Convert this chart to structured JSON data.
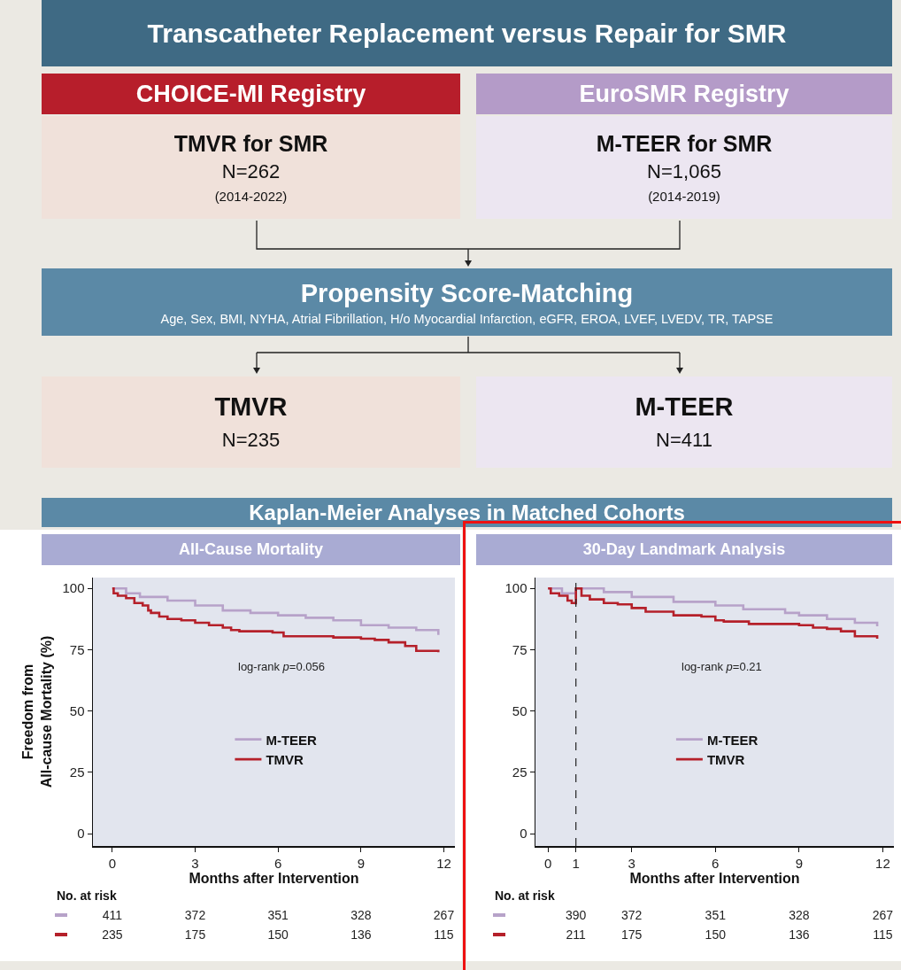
{
  "chart_data": [
    {
      "type": "other",
      "title": "Transcatheter Replacement versus Repair for SMR",
      "annotations": [
        "CHOICE-MI Registry",
        "EuroSMR Registry",
        "TMVR for SMR",
        "N=262",
        "(2014-2022)",
        "M-TEER for SMR",
        "N=1,065",
        "(2014-2019)",
        "Propensity Score-Matching",
        "Age, Sex, BMI, NYHA, Atrial Fibrillation, H/o Myocardial Infarction, eGFR, EROA, LVEF, LVEDV, TR, TAPSE",
        "TMVR",
        "N=235",
        "M-TEER",
        "N=411",
        "Kaplan-Meier Analyses in Matched Cohorts"
      ]
    },
    {
      "type": "step",
      "title": "All-Cause Mortality",
      "xlabel": "Months after Intervention",
      "ylabel": "Freedom from\nAll-cause Mortality (%)",
      "xlim": [
        -0.7,
        12.4
      ],
      "xticks": [
        0,
        3,
        6,
        9,
        12
      ],
      "ylim": [
        -5,
        104.4
      ],
      "yticks": [
        0,
        25,
        50,
        75,
        100
      ],
      "grid": false,
      "legend": "center",
      "tick_labels": true,
      "series": [
        {
          "name": "M-TEER",
          "color": "#b7a2c9",
          "x": [
            0,
            0.5,
            1,
            2,
            3,
            4,
            5,
            6,
            7,
            8,
            9,
            10,
            11,
            11.8
          ],
          "values": [
            100,
            98,
            96.5,
            95,
            93,
            91,
            90,
            89,
            88,
            87,
            85,
            84,
            83,
            81
          ]
        },
        {
          "name": "TMVR",
          "color": "#b5202a",
          "x": [
            0,
            0.05,
            0.2,
            0.5,
            0.8,
            1.1,
            1.3,
            1.4,
            1.7,
            2,
            2.5,
            3,
            3.5,
            4,
            4.3,
            4.6,
            5.8,
            6.2,
            8,
            9,
            9.5,
            10,
            10.6,
            11,
            11.8
          ],
          "values": [
            100,
            98,
            97,
            96,
            94,
            93,
            91,
            90,
            88.5,
            87.5,
            87,
            86,
            85,
            84,
            83,
            82.5,
            82,
            80.5,
            80,
            79.5,
            79,
            78,
            76.5,
            74.5,
            74
          ]
        }
      ],
      "annotations": [
        "log-rank p=0.056",
        "No. at risk",
        "411",
        "372",
        "351",
        "328",
        "267",
        "235",
        "175",
        "150",
        "136",
        "115"
      ]
    },
    {
      "type": "step",
      "title": "30-Day Landmark Analysis",
      "xlabel": "Months after Intervention",
      "xlim": [
        -0.45,
        12.4
      ],
      "xticks": [
        0,
        1,
        3,
        6,
        9,
        12
      ],
      "ylim": [
        -5,
        104.4
      ],
      "yticks": [
        0,
        25,
        50,
        75,
        100
      ],
      "grid": false,
      "legend": "center",
      "ref_lines": [
        {
          "axis": "x",
          "value": 1,
          "line_style": "dashed",
          "color": "#222222"
        }
      ],
      "series": [
        {
          "name": "M-TEER",
          "color": "#b7a2c9",
          "x": [
            0,
            0.5,
            1,
            1,
            2,
            3,
            4.5,
            6,
            7,
            8.5,
            9,
            10,
            11,
            11.8
          ],
          "values": [
            100,
            98,
            96,
            100,
            98.5,
            96.5,
            94.5,
            93,
            91.5,
            90,
            89,
            87.5,
            86,
            84.5
          ]
        },
        {
          "name": "TMVR",
          "color": "#b5202a",
          "x": [
            0,
            0.1,
            0.4,
            0.7,
            0.85,
            1,
            1,
            1.2,
            1.5,
            2,
            2.5,
            3,
            3.5,
            4.5,
            5.5,
            6,
            6.3,
            7.2,
            9,
            9.5,
            10,
            10.5,
            11,
            11.8
          ],
          "values": [
            100,
            98,
            97,
            95,
            94,
            93.5,
            100,
            97,
            95.5,
            94,
            93.5,
            92,
            90.5,
            89,
            88.5,
            87,
            86.5,
            85.5,
            85,
            84,
            83.5,
            82.5,
            80.5,
            79.5
          ]
        }
      ],
      "annotations": [
        "log-rank p=0.21",
        "No. at risk",
        "390",
        "372",
        "351",
        "328",
        "267",
        "211",
        "175",
        "150",
        "136",
        "115"
      ]
    }
  ]
}
